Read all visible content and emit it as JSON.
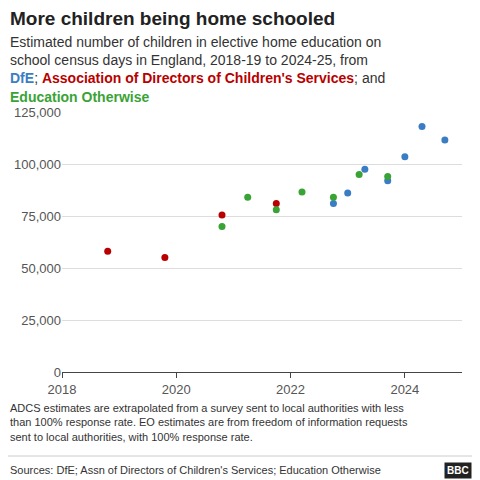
{
  "chart_data": {
    "type": "scatter",
    "title": "More children being home schooled",
    "subtitle": [
      "Estimated number of children in elective home education on",
      "school census days in England, 2018-19 to 2024-25, from",
      "DfE; Association of Directors of Children's Services; and",
      "Education Otherwise"
    ],
    "marker": "circle",
    "series": [
      {
        "name": "DfE",
        "color": "#3b7dc4",
        "x": [
          2022.75,
          2023.0,
          2023.3,
          2023.7,
          2024.0,
          2024.3,
          2024.7
        ],
        "values": [
          81000,
          86000,
          97500,
          92000,
          103500,
          118000,
          111500
        ]
      },
      {
        "name": "Association of Directors of Children's Services",
        "color": "#b80000",
        "x": [
          2018.8,
          2019.8,
          2020.8,
          2021.75
        ],
        "values": [
          58000,
          55000,
          75500,
          81000
        ]
      },
      {
        "name": "Education Otherwise",
        "color": "#3aa335",
        "x": [
          2020.8,
          2021.25,
          2021.75,
          2022.2,
          2022.75,
          2023.2,
          2023.7
        ],
        "values": [
          70000,
          84000,
          78000,
          86500,
          84000,
          95000,
          94000
        ]
      }
    ],
    "xlim": [
      2018,
      2025
    ],
    "xticks": [
      2018,
      2020,
      2022,
      2024
    ],
    "ylim": [
      0,
      125000
    ],
    "yticks": [
      0,
      {
        "value": 25000,
        "label": "25,000"
      },
      {
        "value": 50000,
        "label": "50,000"
      },
      {
        "value": 75000,
        "label": "75,000"
      },
      {
        "value": 100000,
        "label": "100,000"
      },
      {
        "value": 125000,
        "label": "125,000"
      }
    ],
    "grid": true,
    "footnote": [
      "ADCS estimates are extrapolated from a survey sent to local authorities with less",
      "than 100% response rate. EO estimates are from freedom of information requests",
      "sent to local authorities, with 100% response rate."
    ],
    "source": "Sources: DfE; Assn of Directors of Children's Services; Education Otherwise",
    "branding": "BBC"
  }
}
